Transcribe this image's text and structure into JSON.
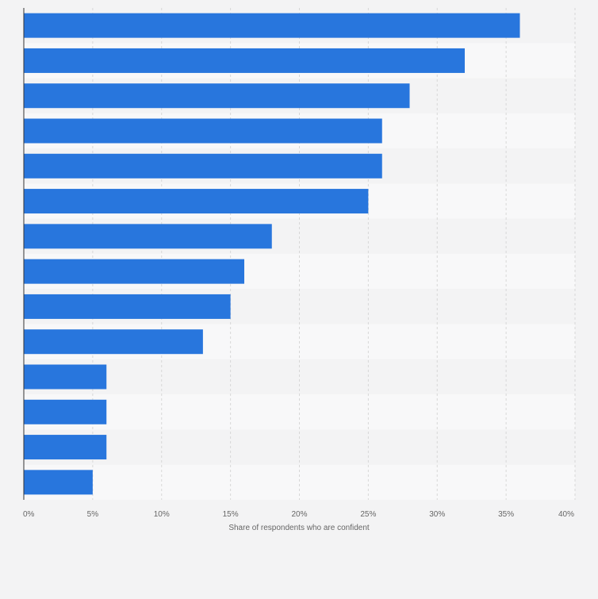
{
  "chart_data": {
    "type": "bar",
    "orientation": "horizontal",
    "categories": [
      "",
      "",
      "",
      "",
      "",
      "",
      "",
      "",
      "",
      "",
      "",
      "",
      "",
      ""
    ],
    "values": [
      36,
      32,
      28,
      26,
      26,
      25,
      18,
      16,
      15,
      13,
      6,
      6,
      6,
      5
    ],
    "xlabel": "Share of respondents who are confident",
    "ylabel": "",
    "xlim": [
      0,
      40
    ],
    "x_ticks": [
      0,
      5,
      10,
      15,
      20,
      25,
      30,
      35,
      40
    ],
    "x_tick_labels": [
      "0%",
      "5%",
      "10%",
      "15%",
      "20%",
      "25%",
      "30%",
      "35%",
      "40%"
    ],
    "grid": true,
    "colors": {
      "bar": "#2876dd",
      "page_background": "#f3f3f4",
      "band_light": "#f8f8f9",
      "band_dark": "#f3f3f4",
      "grid": "#d7d7d7",
      "axis": "#333333",
      "text": "#666666"
    }
  }
}
